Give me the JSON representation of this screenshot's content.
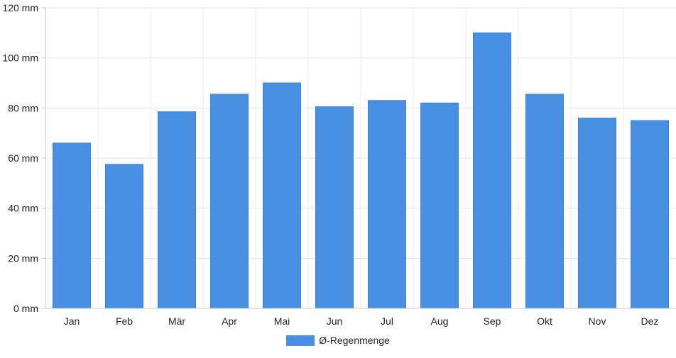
{
  "chart_data": {
    "type": "bar",
    "categories": [
      "Jan",
      "Feb",
      "Mär",
      "Apr",
      "Mai",
      "Jun",
      "Jul",
      "Aug",
      "Sep",
      "Okt",
      "Nov",
      "Dez"
    ],
    "series": [
      {
        "name": "Ø-Regenmenge",
        "values": [
          66,
          57.5,
          78.5,
          85.5,
          90,
          80.5,
          83,
          82,
          110,
          85.5,
          76,
          75
        ],
        "color": "#4a90e2"
      }
    ],
    "yticks": [
      "0 mm",
      "20 mm",
      "40 mm",
      "60 mm",
      "80 mm",
      "100 mm",
      "120 mm"
    ],
    "ylim": [
      0,
      120
    ],
    "grid": true,
    "legend_position": "bottom-center"
  }
}
